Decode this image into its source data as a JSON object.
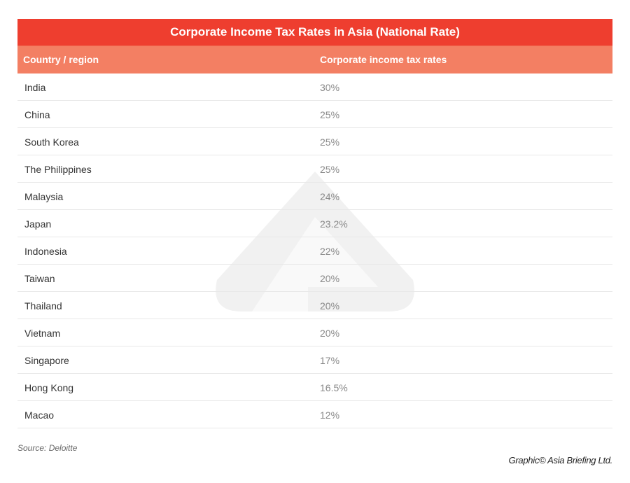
{
  "chart_data": {
    "type": "table",
    "title": "Corporate Income Tax Rates in Asia (National Rate)",
    "columns": [
      "Country / region",
      "Corporate income tax rates"
    ],
    "rows": [
      {
        "country": "India",
        "rate": "30%"
      },
      {
        "country": "China",
        "rate": "25%"
      },
      {
        "country": "South Korea",
        "rate": "25%"
      },
      {
        "country": "The Philippines",
        "rate": "25%"
      },
      {
        "country": "Malaysia",
        "rate": "24%"
      },
      {
        "country": "Japan",
        "rate": "23.2%"
      },
      {
        "country": "Indonesia",
        "rate": "22%"
      },
      {
        "country": "Taiwan",
        "rate": "20%"
      },
      {
        "country": "Thailand",
        "rate": "20%"
      },
      {
        "country": "Vietnam",
        "rate": "20%"
      },
      {
        "country": "Singapore",
        "rate": "17%"
      },
      {
        "country": "Hong Kong",
        "rate": "16.5%"
      },
      {
        "country": "Macao",
        "rate": "12%"
      }
    ]
  },
  "source": "Source: Deloitte",
  "credit": "Graphic© Asia Briefing Ltd.",
  "colors": {
    "title_bg": "#ee3e2f",
    "header_bg": "#f37f63"
  }
}
